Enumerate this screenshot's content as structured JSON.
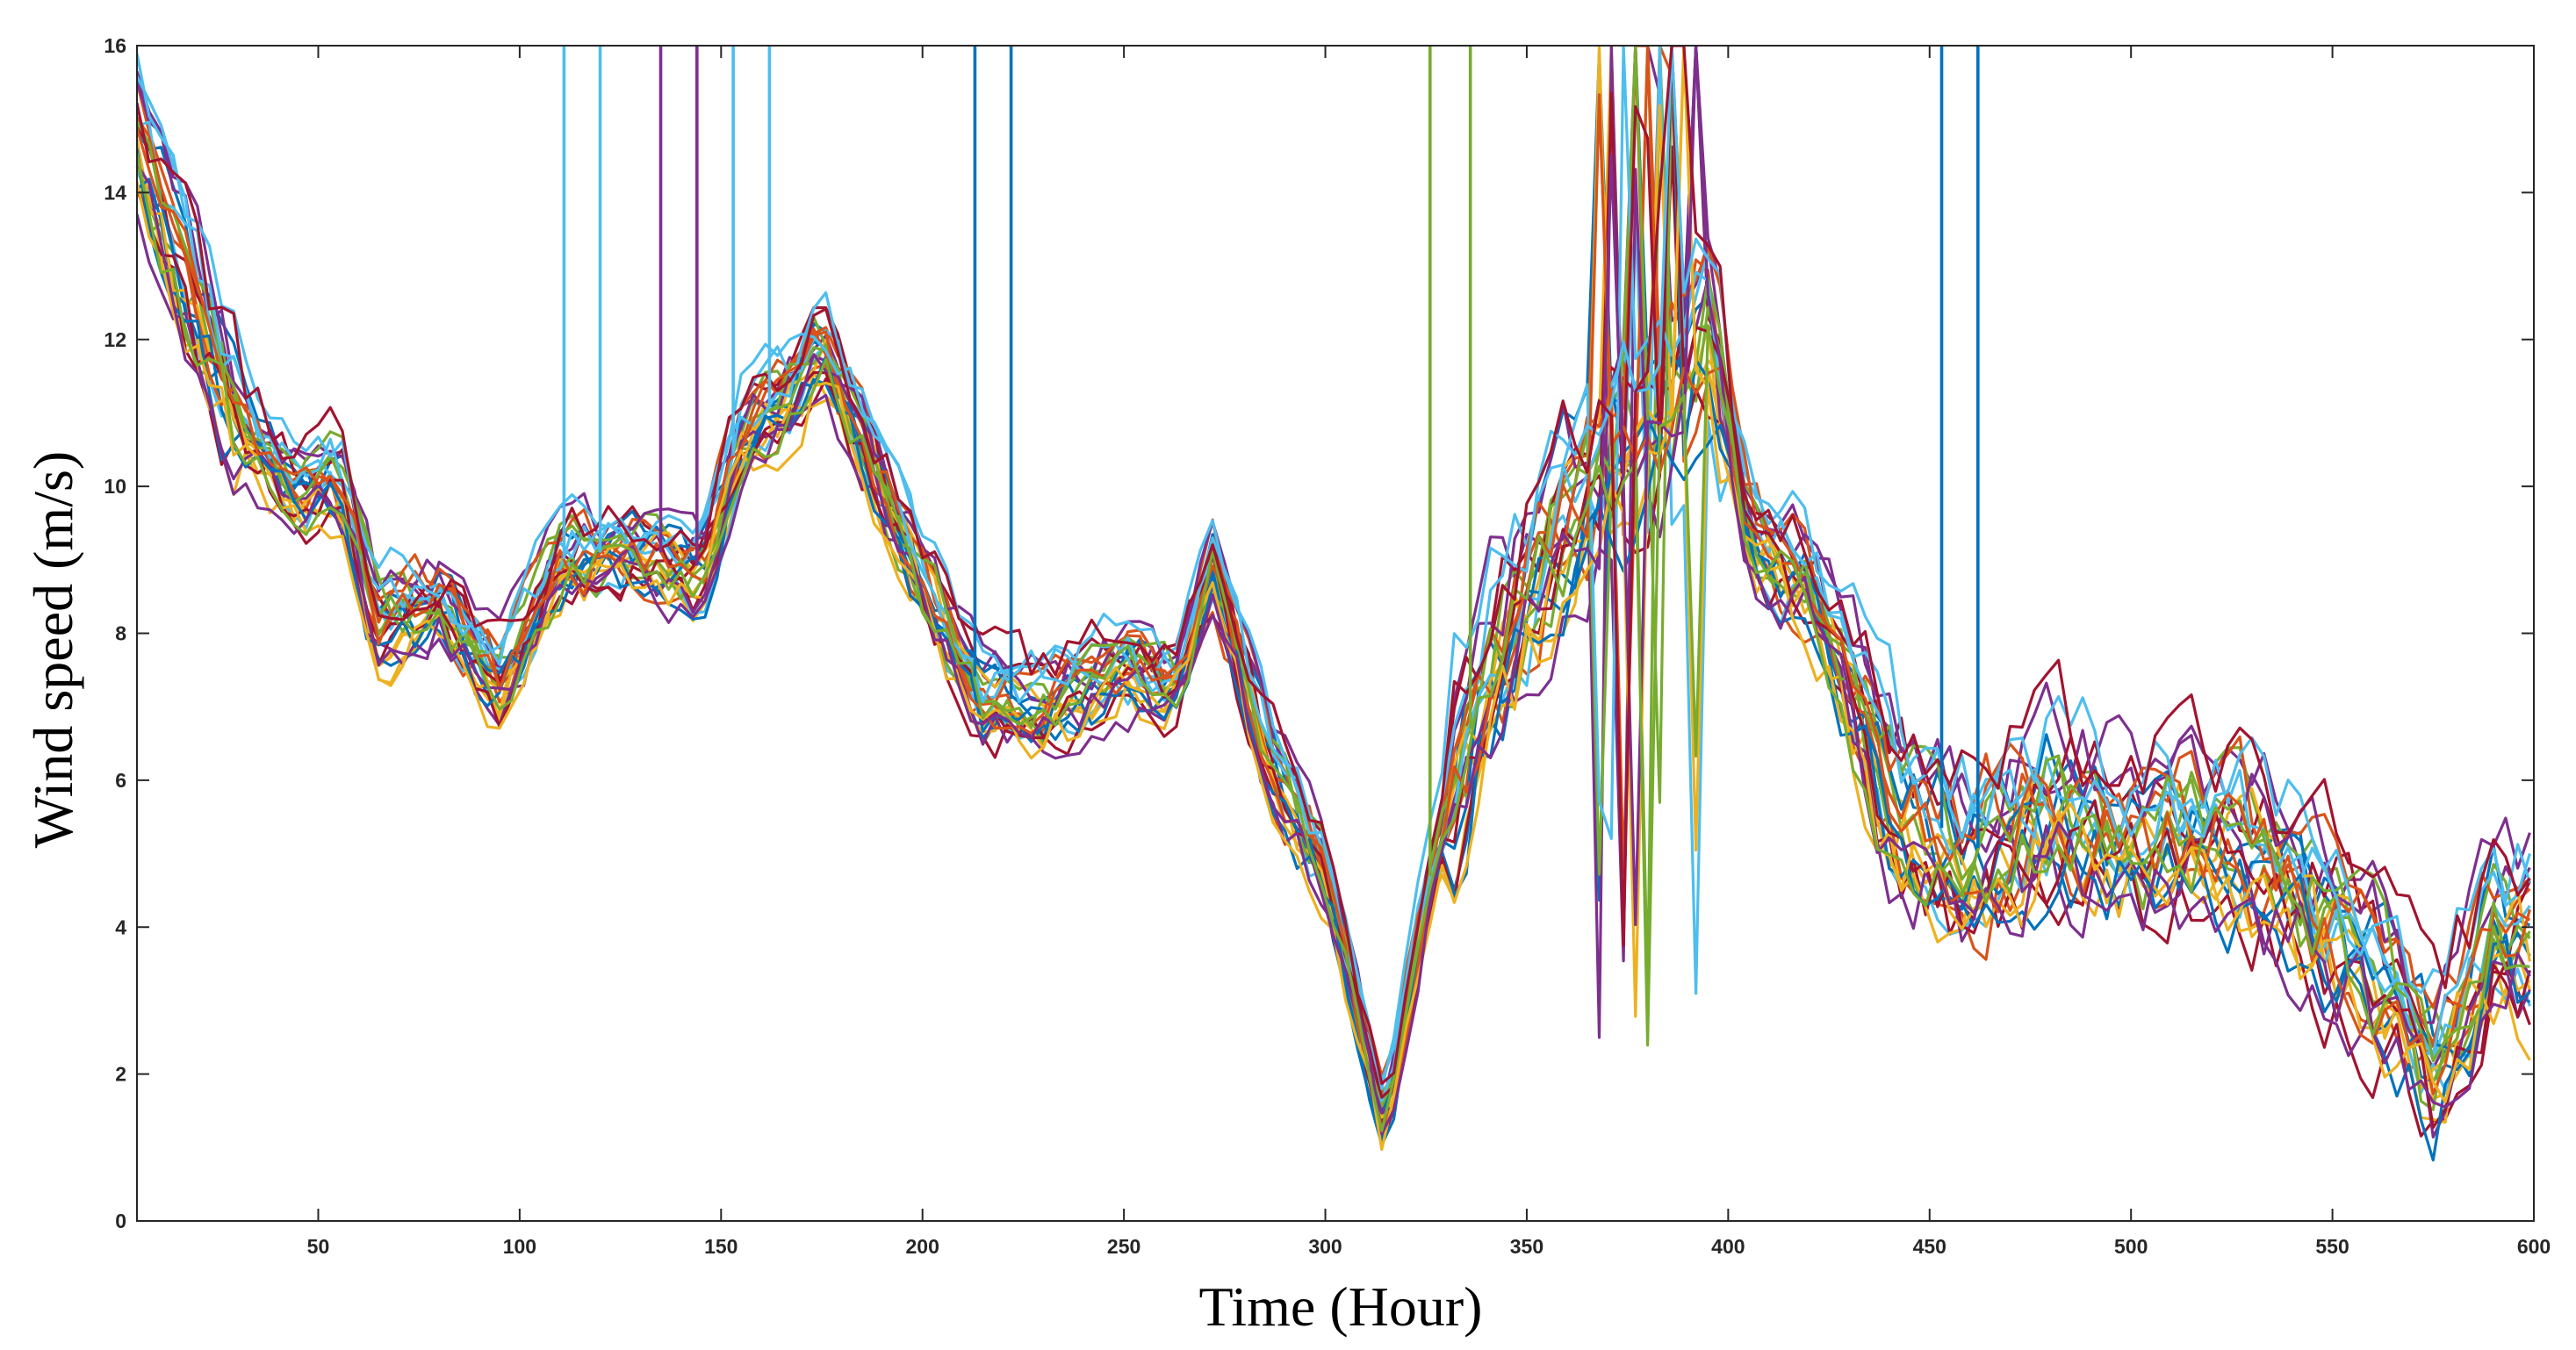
{
  "chart_data": {
    "type": "line",
    "title": "",
    "xlabel": "Time (Hour)",
    "ylabel": "Wind speed (m/s)",
    "xlim": [
      5,
      600
    ],
    "ylim": [
      0,
      16
    ],
    "grid": false,
    "legend": "none",
    "x_ticks": [
      50,
      100,
      150,
      200,
      250,
      300,
      350,
      400,
      450,
      500,
      550,
      600
    ],
    "y_ticks": [
      0,
      2,
      4,
      6,
      8,
      10,
      12,
      14,
      16
    ],
    "x_tick_labels": [
      "50",
      "100",
      "150",
      "200",
      "250",
      "300",
      "350",
      "400",
      "450",
      "500",
      "550",
      "600"
    ],
    "y_tick_labels": [
      "0",
      "2",
      "4",
      "6",
      "8",
      "10",
      "12",
      "14",
      "16"
    ],
    "series_count": 28,
    "series_colors": [
      "#0072BD",
      "#D95319",
      "#EDB120",
      "#7E2F8E",
      "#77AC30",
      "#4DBEEE",
      "#A2142F"
    ],
    "mean_profile": {
      "x": [
        5,
        15,
        30,
        45,
        55,
        65,
        80,
        95,
        110,
        130,
        145,
        155,
        165,
        175,
        185,
        200,
        215,
        230,
        250,
        262,
        272,
        285,
        300,
        315,
        325,
        340,
        355,
        370,
        385,
        395,
        405,
        420,
        440,
        460,
        480,
        500,
        520,
        540,
        560,
        575,
        590,
        600
      ],
      "values": [
        14.8,
        13.2,
        11.0,
        10.0,
        10.2,
        8.2,
        8.5,
        7.4,
        9.0,
        9.2,
        8.9,
        10.8,
        11.2,
        12.0,
        10.8,
        8.8,
        7.2,
        7.0,
        7.6,
        7.3,
        9.0,
        6.5,
        4.8,
        1.3,
        4.5,
        7.5,
        9.3,
        10.5,
        11.0,
        12.5,
        9.5,
        8.8,
        6.0,
        5.0,
        5.8,
        5.3,
        5.5,
        4.8,
        3.5,
        2.2,
        4.0,
        4.0
      ]
    },
    "spikes": [
      {
        "x": 111,
        "y_to": 16,
        "color": "#4DBEEE"
      },
      {
        "x": 120,
        "y_to": 16,
        "color": "#4DBEEE"
      },
      {
        "x": 135,
        "y_to": 16,
        "color": "#7E2F8E"
      },
      {
        "x": 144,
        "y_to": 16,
        "color": "#7E2F8E"
      },
      {
        "x": 153,
        "y_to": 16,
        "color": "#4DBEEE"
      },
      {
        "x": 162,
        "y_to": 16,
        "color": "#4DBEEE"
      },
      {
        "x": 213,
        "y_to": 16,
        "color": "#0072BD"
      },
      {
        "x": 222,
        "y_to": 16,
        "color": "#0072BD"
      },
      {
        "x": 326,
        "y_to": 16,
        "color": "#77AC30"
      },
      {
        "x": 336,
        "y_to": 16,
        "color": "#77AC30"
      },
      {
        "x": 453,
        "y_to": 16,
        "color": "#0072BD"
      },
      {
        "x": 462,
        "y_to": 16,
        "color": "#0072BD"
      }
    ]
  }
}
